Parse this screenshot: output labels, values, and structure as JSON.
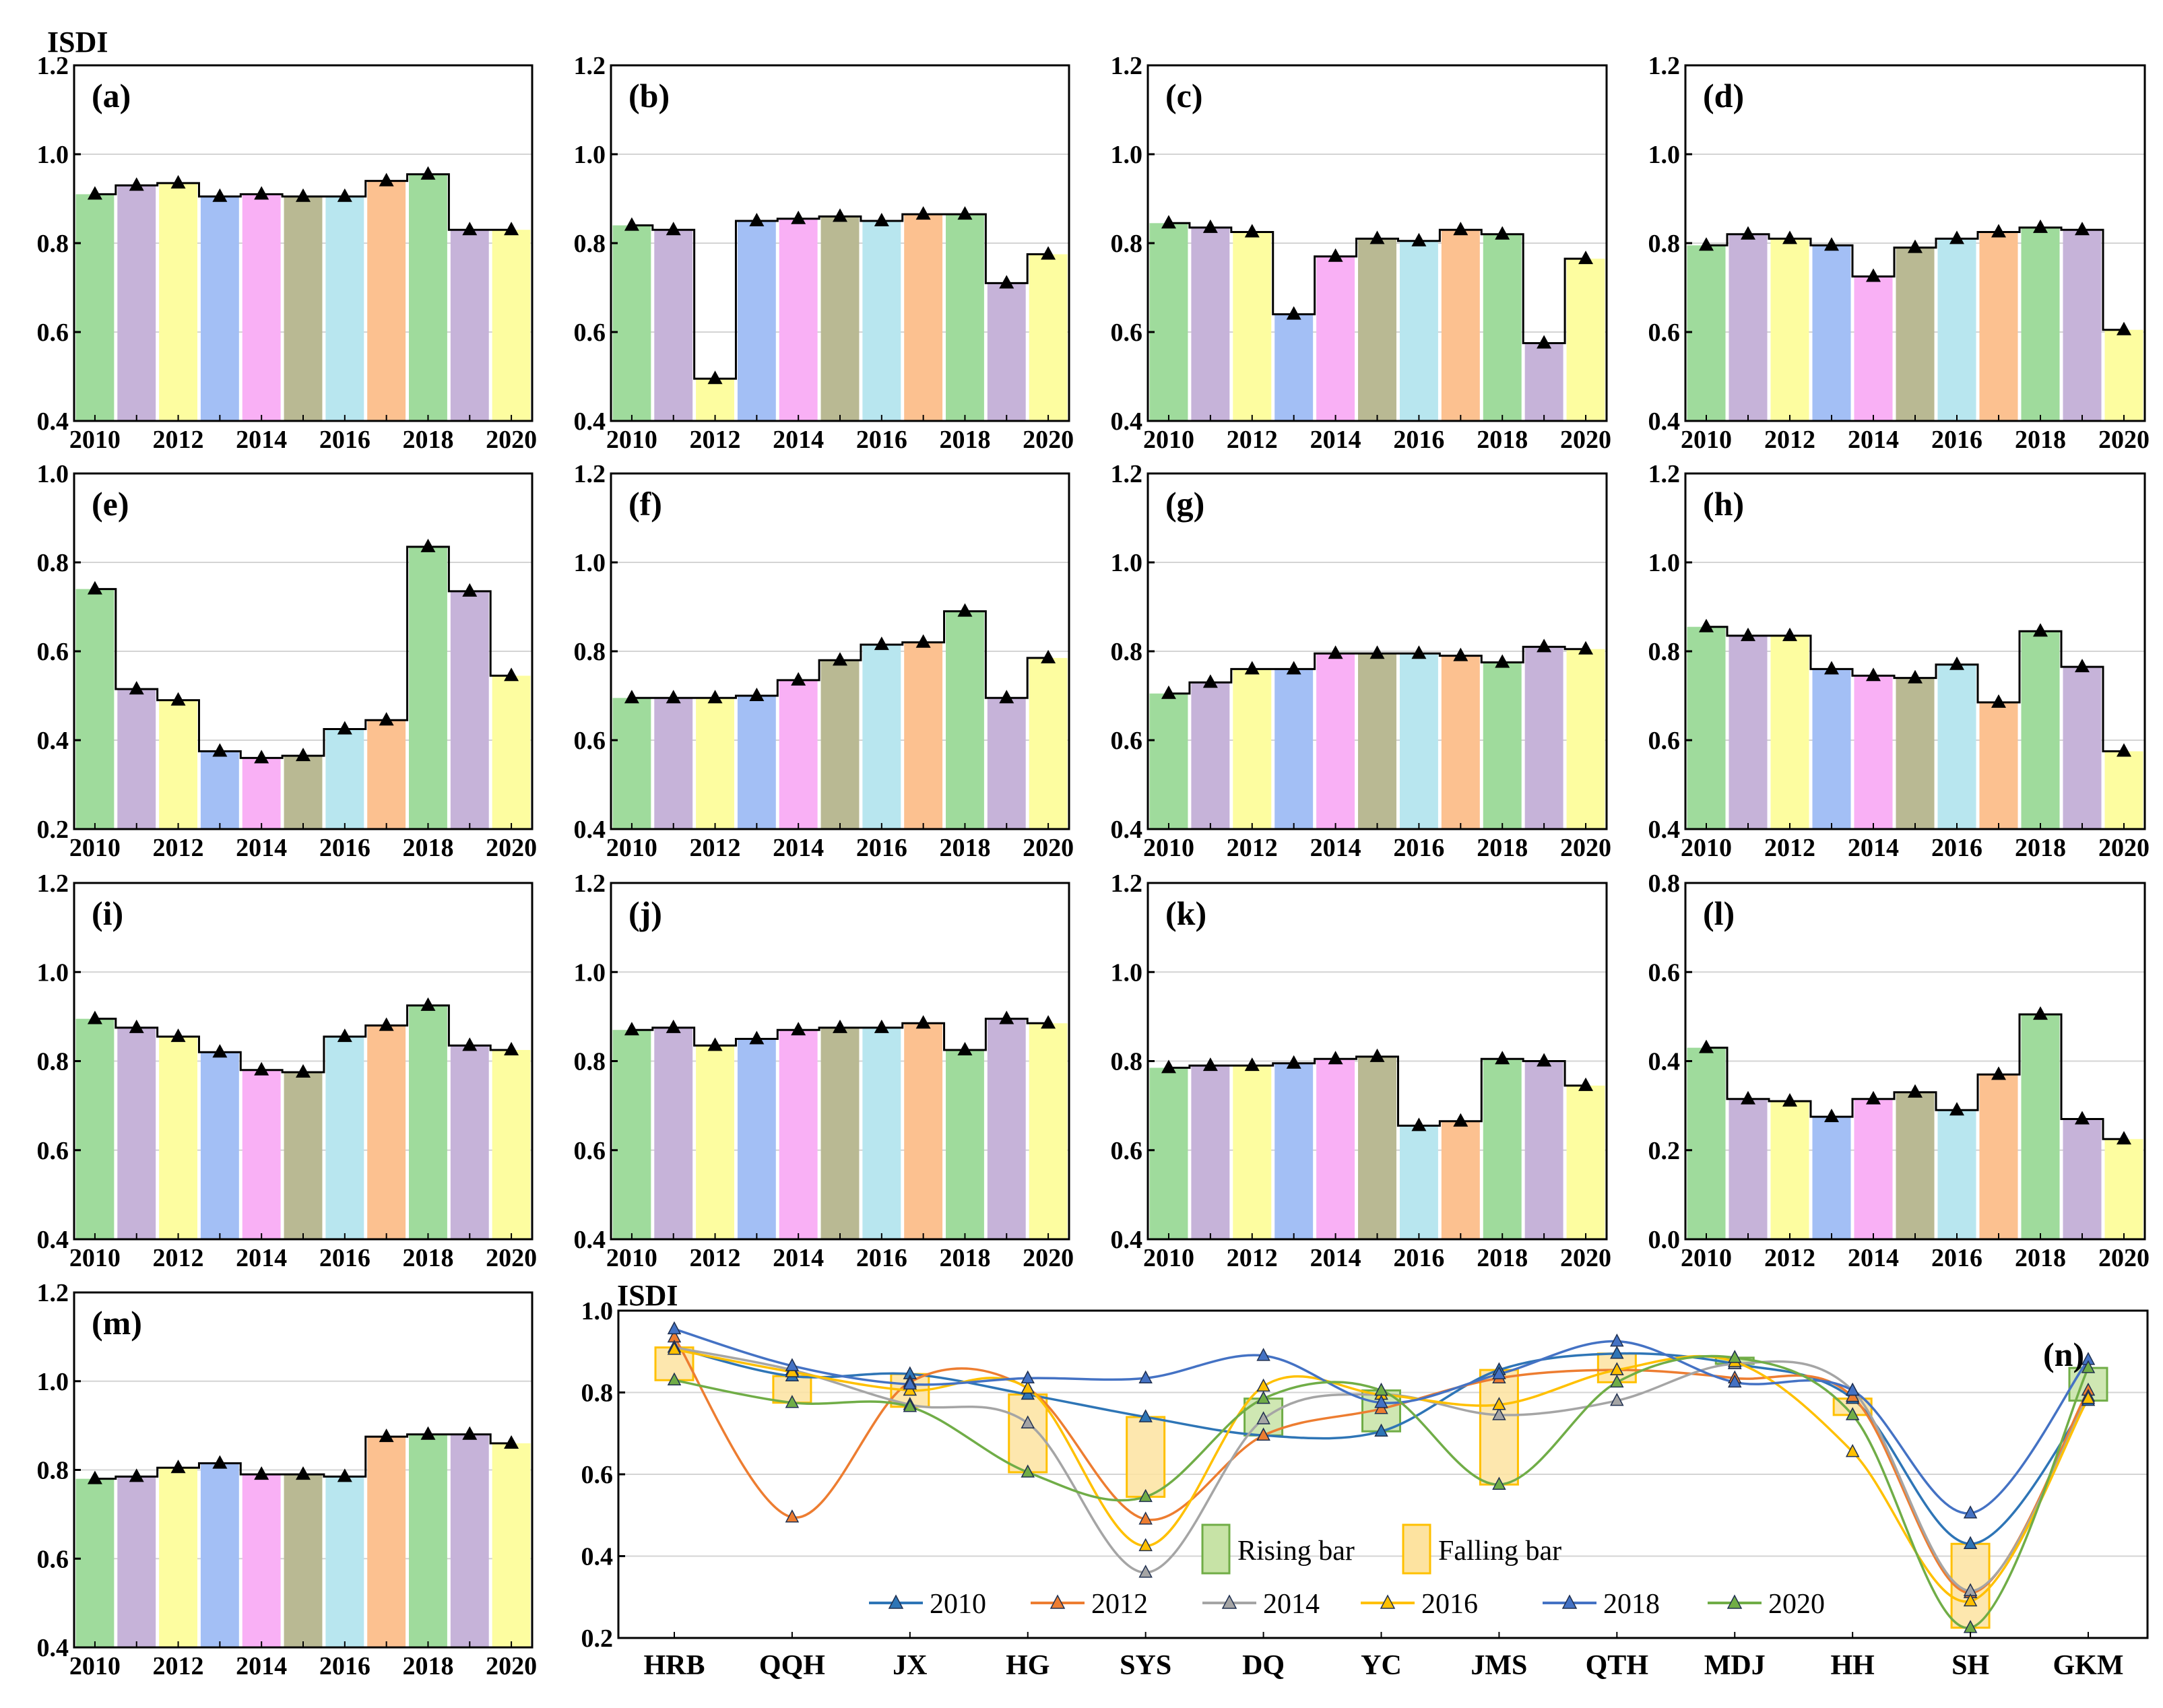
{
  "figure": {
    "ylabel": "ISDI",
    "year_colors": [
      "#9fdb9c",
      "#c6b3d9",
      "#fdfda0",
      "#a3bff5",
      "#f9b0f5",
      "#b9b993",
      "#b8e6ef",
      "#fcc190",
      "#9fdb9c",
      "#c6b3d9",
      "#fdfda0"
    ],
    "step_color": "#000000",
    "marker_color": "#000000"
  },
  "chart_data": [
    {
      "id": "a",
      "label": "(a)",
      "type": "bar",
      "title": "",
      "ylabel": "ISDI",
      "xlabel": "",
      "ylim": [
        0.4,
        1.2
      ],
      "yticks": [
        "0.4",
        "0.6",
        "0.8",
        "1.0",
        "1.2"
      ],
      "years": [
        2010,
        2011,
        2012,
        2013,
        2014,
        2015,
        2016,
        2017,
        2018,
        2019,
        2020
      ],
      "xtick_labels": [
        "2010",
        "2012",
        "2014",
        "2016",
        "2018",
        "2020"
      ],
      "values": [
        0.91,
        0.93,
        0.935,
        0.905,
        0.91,
        0.905,
        0.905,
        0.94,
        0.955,
        0.83,
        0.83
      ]
    },
    {
      "id": "b",
      "label": "(b)",
      "type": "bar",
      "title": "",
      "ylabel": "",
      "xlabel": "",
      "ylim": [
        0.4,
        1.2
      ],
      "yticks": [
        "0.4",
        "0.6",
        "0.8",
        "1.0",
        "1.2"
      ],
      "years": [
        2010,
        2011,
        2012,
        2013,
        2014,
        2015,
        2016,
        2017,
        2018,
        2019,
        2020
      ],
      "xtick_labels": [
        "2010",
        "2012",
        "2014",
        "2016",
        "2018",
        "2020"
      ],
      "values": [
        0.84,
        0.83,
        0.495,
        0.85,
        0.855,
        0.86,
        0.85,
        0.865,
        0.865,
        0.71,
        0.775
      ]
    },
    {
      "id": "c",
      "label": "(c)",
      "type": "bar",
      "title": "",
      "ylabel": "",
      "xlabel": "",
      "ylim": [
        0.4,
        1.2
      ],
      "yticks": [
        "0.4",
        "0.6",
        "0.8",
        "1.0",
        "1.2"
      ],
      "years": [
        2010,
        2011,
        2012,
        2013,
        2014,
        2015,
        2016,
        2017,
        2018,
        2019,
        2020
      ],
      "xtick_labels": [
        "2010",
        "2012",
        "2014",
        "2016",
        "2018",
        "2020"
      ],
      "values": [
        0.845,
        0.835,
        0.825,
        0.64,
        0.77,
        0.81,
        0.805,
        0.83,
        0.82,
        0.575,
        0.765
      ]
    },
    {
      "id": "d",
      "label": "(d)",
      "type": "bar",
      "title": "",
      "ylabel": "",
      "xlabel": "",
      "ylim": [
        0.4,
        1.2
      ],
      "yticks": [
        "0.4",
        "0.6",
        "0.8",
        "1.0",
        "1.2"
      ],
      "years": [
        2010,
        2011,
        2012,
        2013,
        2014,
        2015,
        2016,
        2017,
        2018,
        2019,
        2020
      ],
      "xtick_labels": [
        "2010",
        "2012",
        "2014",
        "2016",
        "2018",
        "2020"
      ],
      "values": [
        0.795,
        0.82,
        0.81,
        0.795,
        0.725,
        0.79,
        0.81,
        0.825,
        0.835,
        0.83,
        0.605
      ]
    },
    {
      "id": "e",
      "label": "(e)",
      "type": "bar",
      "title": "",
      "ylabel": "",
      "xlabel": "",
      "ylim": [
        0.2,
        1.0
      ],
      "yticks": [
        "0.2",
        "0.4",
        "0.6",
        "0.8",
        "1.0"
      ],
      "years": [
        2010,
        2011,
        2012,
        2013,
        2014,
        2015,
        2016,
        2017,
        2018,
        2019,
        2020
      ],
      "xtick_labels": [
        "2010",
        "2012",
        "2014",
        "2016",
        "2018",
        "2020"
      ],
      "values": [
        0.74,
        0.515,
        0.49,
        0.375,
        0.36,
        0.365,
        0.425,
        0.445,
        0.835,
        0.735,
        0.545
      ]
    },
    {
      "id": "f",
      "label": "(f)",
      "type": "bar",
      "title": "",
      "ylabel": "",
      "xlabel": "",
      "ylim": [
        0.4,
        1.2
      ],
      "yticks": [
        "0.4",
        "0.6",
        "0.8",
        "1.0",
        "1.2"
      ],
      "years": [
        2010,
        2011,
        2012,
        2013,
        2014,
        2015,
        2016,
        2017,
        2018,
        2019,
        2020
      ],
      "xtick_labels": [
        "2010",
        "2012",
        "2014",
        "2016",
        "2018",
        "2020"
      ],
      "values": [
        0.695,
        0.695,
        0.695,
        0.7,
        0.735,
        0.78,
        0.815,
        0.82,
        0.89,
        0.695,
        0.785
      ]
    },
    {
      "id": "g",
      "label": "(g)",
      "type": "bar",
      "title": "",
      "ylabel": "",
      "xlabel": "",
      "ylim": [
        0.4,
        1.2
      ],
      "yticks": [
        "0.4",
        "0.6",
        "0.8",
        "1.0",
        "1.2"
      ],
      "years": [
        2010,
        2011,
        2012,
        2013,
        2014,
        2015,
        2016,
        2017,
        2018,
        2019,
        2020
      ],
      "xtick_labels": [
        "2010",
        "2012",
        "2014",
        "2016",
        "2018",
        "2020"
      ],
      "values": [
        0.705,
        0.73,
        0.76,
        0.76,
        0.795,
        0.795,
        0.795,
        0.79,
        0.775,
        0.81,
        0.805
      ]
    },
    {
      "id": "h",
      "label": "(h)",
      "type": "bar",
      "title": "",
      "ylabel": "",
      "xlabel": "",
      "ylim": [
        0.4,
        1.2
      ],
      "yticks": [
        "0.4",
        "0.6",
        "0.8",
        "1.0",
        "1.2"
      ],
      "years": [
        2010,
        2011,
        2012,
        2013,
        2014,
        2015,
        2016,
        2017,
        2018,
        2019,
        2020
      ],
      "xtick_labels": [
        "2010",
        "2012",
        "2014",
        "2016",
        "2018",
        "2020"
      ],
      "values": [
        0.855,
        0.835,
        0.835,
        0.76,
        0.745,
        0.74,
        0.77,
        0.685,
        0.845,
        0.765,
        0.575
      ]
    },
    {
      "id": "i",
      "label": "(i)",
      "type": "bar",
      "title": "",
      "ylabel": "",
      "xlabel": "",
      "ylim": [
        0.4,
        1.2
      ],
      "yticks": [
        "0.4",
        "0.6",
        "0.8",
        "1.0",
        "1.2"
      ],
      "years": [
        2010,
        2011,
        2012,
        2013,
        2014,
        2015,
        2016,
        2017,
        2018,
        2019,
        2020
      ],
      "xtick_labels": [
        "2010",
        "2012",
        "2014",
        "2016",
        "2018",
        "2020"
      ],
      "values": [
        0.895,
        0.875,
        0.855,
        0.82,
        0.78,
        0.775,
        0.855,
        0.88,
        0.925,
        0.835,
        0.825
      ]
    },
    {
      "id": "j",
      "label": "(j)",
      "type": "bar",
      "title": "",
      "ylabel": "",
      "xlabel": "",
      "ylim": [
        0.4,
        1.2
      ],
      "yticks": [
        "0.4",
        "0.6",
        "0.8",
        "1.0",
        "1.2"
      ],
      "years": [
        2010,
        2011,
        2012,
        2013,
        2014,
        2015,
        2016,
        2017,
        2018,
        2019,
        2020
      ],
      "xtick_labels": [
        "2010",
        "2012",
        "2014",
        "2016",
        "2018",
        "2020"
      ],
      "values": [
        0.87,
        0.875,
        0.835,
        0.85,
        0.87,
        0.875,
        0.875,
        0.885,
        0.825,
        0.895,
        0.885
      ]
    },
    {
      "id": "k",
      "label": "(k)",
      "type": "bar",
      "title": "",
      "ylabel": "",
      "xlabel": "",
      "ylim": [
        0.4,
        1.2
      ],
      "yticks": [
        "0.4",
        "0.6",
        "0.8",
        "1.0",
        "1.2"
      ],
      "years": [
        2010,
        2011,
        2012,
        2013,
        2014,
        2015,
        2016,
        2017,
        2018,
        2019,
        2020
      ],
      "xtick_labels": [
        "2010",
        "2012",
        "2014",
        "2016",
        "2018",
        "2020"
      ],
      "values": [
        0.785,
        0.79,
        0.79,
        0.795,
        0.805,
        0.81,
        0.655,
        0.665,
        0.805,
        0.8,
        0.745
      ]
    },
    {
      "id": "l",
      "label": "(l)",
      "type": "bar",
      "title": "",
      "ylabel": "",
      "xlabel": "",
      "ylim": [
        0.0,
        0.8
      ],
      "yticks": [
        "0.0",
        "0.2",
        "0.4",
        "0.6",
        "0.8"
      ],
      "years": [
        2010,
        2011,
        2012,
        2013,
        2014,
        2015,
        2016,
        2017,
        2018,
        2019,
        2020
      ],
      "xtick_labels": [
        "2010",
        "2012",
        "2014",
        "2016",
        "2018",
        "2020"
      ],
      "values": [
        0.43,
        0.315,
        0.31,
        0.275,
        0.315,
        0.33,
        0.29,
        0.37,
        0.505,
        0.27,
        0.225
      ]
    },
    {
      "id": "m",
      "label": "(m)",
      "type": "bar",
      "title": "",
      "ylabel": "",
      "xlabel": "",
      "ylim": [
        0.4,
        1.2
      ],
      "yticks": [
        "0.4",
        "0.6",
        "0.8",
        "1.0",
        "1.2"
      ],
      "years": [
        2010,
        2011,
        2012,
        2013,
        2014,
        2015,
        2016,
        2017,
        2018,
        2019,
        2020
      ],
      "xtick_labels": [
        "2010",
        "2012",
        "2014",
        "2016",
        "2018",
        "2020"
      ],
      "values": [
        0.78,
        0.785,
        0.805,
        0.815,
        0.79,
        0.79,
        0.785,
        0.875,
        0.88,
        0.88,
        0.86
      ]
    },
    {
      "id": "n",
      "label": "(n)",
      "type": "line",
      "title": "",
      "ylabel": "ISDI",
      "xlabel": "",
      "ylim": [
        0.2,
        1.0
      ],
      "yticks": [
        "0.2",
        "0.4",
        "0.6",
        "0.8",
        "1.0"
      ],
      "categories": [
        "HRB",
        "QQH",
        "JX",
        "HG",
        "SYS",
        "DQ",
        "YC",
        "JMS",
        "QTH",
        "MDJ",
        "HH",
        "SH",
        "GKM"
      ],
      "series": [
        {
          "name": "2010",
          "color": "#2e75b6",
          "values": [
            0.91,
            0.84,
            0.845,
            0.795,
            0.74,
            0.695,
            0.705,
            0.855,
            0.895,
            0.87,
            0.785,
            0.43,
            0.78
          ]
        },
        {
          "name": "2012",
          "color": "#ed7d31",
          "values": [
            0.935,
            0.495,
            0.825,
            0.81,
            0.49,
            0.695,
            0.76,
            0.835,
            0.855,
            0.835,
            0.79,
            0.31,
            0.805
          ]
        },
        {
          "name": "2014",
          "color": "#a5a5a5",
          "values": [
            0.91,
            0.855,
            0.77,
            0.725,
            0.36,
            0.735,
            0.795,
            0.745,
            0.78,
            0.87,
            0.805,
            0.315,
            0.79
          ]
        },
        {
          "name": "2016",
          "color": "#ffc000",
          "values": [
            0.905,
            0.85,
            0.805,
            0.81,
            0.425,
            0.815,
            0.795,
            0.77,
            0.855,
            0.875,
            0.655,
            0.29,
            0.785
          ]
        },
        {
          "name": "2018",
          "color": "#4472c4",
          "values": [
            0.955,
            0.865,
            0.82,
            0.835,
            0.835,
            0.89,
            0.775,
            0.845,
            0.925,
            0.825,
            0.805,
            0.505,
            0.88
          ]
        },
        {
          "name": "2020",
          "color": "#70ad47",
          "values": [
            0.83,
            0.775,
            0.765,
            0.605,
            0.545,
            0.785,
            0.805,
            0.575,
            0.825,
            0.885,
            0.745,
            0.225,
            0.86
          ]
        }
      ],
      "box_bars": [
        {
          "category": "HRB",
          "kind": "falling",
          "from": 0.91,
          "to": 0.83
        },
        {
          "category": "QQH",
          "kind": "falling",
          "from": 0.84,
          "to": 0.775
        },
        {
          "category": "JX",
          "kind": "falling",
          "from": 0.845,
          "to": 0.765
        },
        {
          "category": "HG",
          "kind": "falling",
          "from": 0.795,
          "to": 0.605
        },
        {
          "category": "SYS",
          "kind": "falling",
          "from": 0.74,
          "to": 0.545
        },
        {
          "category": "DQ",
          "kind": "rising",
          "from": 0.695,
          "to": 0.785
        },
        {
          "category": "YC",
          "kind": "rising",
          "from": 0.705,
          "to": 0.805
        },
        {
          "category": "JMS",
          "kind": "falling",
          "from": 0.855,
          "to": 0.575
        },
        {
          "category": "QTH",
          "kind": "falling",
          "from": 0.895,
          "to": 0.825
        },
        {
          "category": "MDJ",
          "kind": "rising",
          "from": 0.87,
          "to": 0.885
        },
        {
          "category": "HH",
          "kind": "falling",
          "from": 0.785,
          "to": 0.745
        },
        {
          "category": "SH",
          "kind": "falling",
          "from": 0.43,
          "to": 0.225
        },
        {
          "category": "GKM",
          "kind": "rising",
          "from": 0.78,
          "to": 0.86
        }
      ],
      "legend": {
        "bars": [
          {
            "name": "Rising bar",
            "fill": "#c7e3a6",
            "stroke": "#70ad47"
          },
          {
            "name": "Falling bar",
            "fill": "#fde3a0",
            "stroke": "#ffc000"
          }
        ],
        "placement": "bottom-center"
      }
    }
  ]
}
